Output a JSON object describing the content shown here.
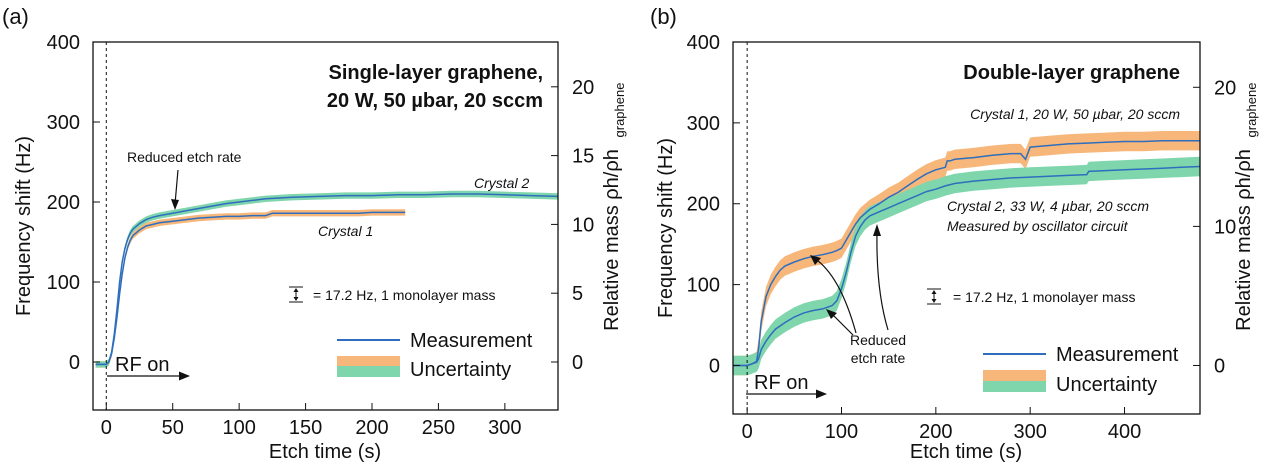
{
  "colors": {
    "measurement": "#2f6ebd",
    "uncertainty_orange": "#f7b77a",
    "uncertainty_green": "#7fd6ad",
    "axis": "#111111"
  },
  "chart_data": [
    {
      "panel_label": "(a)",
      "type": "line",
      "title": "Single-layer graphene,",
      "title_line2": "20 W, 50 µbar, 20 sccm",
      "xlabel": "Etch time (s)",
      "ylabel": "Frequency shift (Hz)",
      "ylabel_right": "Relative mass ρh/ρh",
      "ylabel_right_sub": "graphene",
      "xlim": [
        -10,
        340
      ],
      "ylim": [
        -60,
        400
      ],
      "ylim_right": [
        -3.488,
        23.256
      ],
      "xticks": [
        0,
        50,
        100,
        150,
        200,
        250,
        300
      ],
      "yticks": [
        0,
        100,
        200,
        300,
        400
      ],
      "yticks_right": [
        0,
        5,
        10,
        15,
        20
      ],
      "rf_label": "RF on",
      "scale_note": "= 17.2 Hz, 1 monolayer mass",
      "annotation": "Reduced etch rate",
      "legend": {
        "measurement": "Measurement",
        "uncertainty": "Uncertainty",
        "position": "bottom-right"
      },
      "series": [
        {
          "name": "Crystal 1",
          "band_color": "orange",
          "band_halfwidth": 4,
          "x": [
            -8,
            0,
            2,
            4,
            6,
            8,
            10,
            12,
            14,
            16,
            18,
            20,
            25,
            30,
            35,
            40,
            50,
            60,
            70,
            80,
            90,
            100,
            110,
            120,
            125,
            130,
            140,
            150,
            160,
            170,
            180,
            190,
            200,
            210,
            220,
            225
          ],
          "y": [
            -3,
            -3,
            0,
            10,
            30,
            55,
            85,
            110,
            130,
            143,
            152,
            158,
            165,
            170,
            172,
            174,
            176,
            178,
            180,
            181,
            182,
            182,
            183,
            183,
            186,
            186,
            186,
            186,
            186,
            186,
            186,
            186,
            187,
            187,
            187,
            187
          ]
        },
        {
          "name": "Crystal 2",
          "band_color": "green",
          "band_halfwidth": 4,
          "x": [
            -8,
            0,
            2,
            4,
            6,
            8,
            10,
            12,
            14,
            16,
            18,
            20,
            25,
            30,
            35,
            40,
            50,
            60,
            70,
            80,
            90,
            100,
            110,
            120,
            140,
            160,
            180,
            200,
            220,
            240,
            260,
            280,
            300,
            320,
            340
          ],
          "y": [
            -3,
            -3,
            0,
            12,
            35,
            65,
            100,
            125,
            142,
            153,
            161,
            166,
            173,
            178,
            181,
            183,
            186,
            189,
            192,
            195,
            198,
            200,
            202,
            204,
            206,
            207,
            208,
            208,
            209,
            209,
            210,
            210,
            209,
            208,
            207
          ]
        }
      ]
    },
    {
      "panel_label": "(b)",
      "type": "line",
      "title": "Double-layer graphene",
      "xlabel": "Etch time (s)",
      "ylabel": "Frequency shift (Hz)",
      "ylabel_right": "Relative mass ρh/ρh",
      "ylabel_right_sub": "graphene",
      "xlim": [
        -15,
        480
      ],
      "ylim": [
        -60,
        400
      ],
      "ylim_right": [
        -3.488,
        23.256
      ],
      "xticks": [
        0,
        100,
        200,
        300,
        400
      ],
      "yticks": [
        0,
        100,
        200,
        300,
        400
      ],
      "yticks_right": [
        0,
        10,
        20
      ],
      "rf_label": "RF on",
      "scale_note": "= 17.2 Hz, 1 monolayer mass",
      "annotation": "Reduced",
      "annotation_line2": "etch rate",
      "legend": {
        "measurement": "Measurement",
        "uncertainty": "Uncertainty",
        "position": "bottom-right"
      },
      "series": [
        {
          "name": "Crystal 1, 20 W, 50 µbar, 20 sccm",
          "band_color": "orange",
          "band_halfwidth": 12,
          "x": [
            -15,
            0,
            5,
            10,
            12,
            15,
            20,
            25,
            30,
            35,
            40,
            50,
            60,
            70,
            80,
            90,
            95,
            100,
            105,
            110,
            115,
            120,
            130,
            140,
            150,
            160,
            170,
            180,
            190,
            200,
            210,
            212,
            215,
            220,
            240,
            260,
            280,
            290,
            295,
            300,
            320,
            340,
            360,
            380,
            400,
            420,
            440,
            460,
            480
          ],
          "y": [
            0,
            0,
            2,
            5,
            20,
            55,
            85,
            100,
            110,
            118,
            123,
            128,
            132,
            135,
            137,
            140,
            142,
            145,
            155,
            165,
            175,
            183,
            193,
            200,
            208,
            214,
            222,
            230,
            237,
            242,
            245,
            253,
            253,
            255,
            257,
            260,
            262,
            262,
            255,
            270,
            272,
            274,
            275,
            276,
            277,
            277,
            278,
            278,
            278
          ]
        },
        {
          "name": "Crystal 2, 33 W, 4 µbar, 20 sccm",
          "subtitle": "Measured by oscillator circuit",
          "band_color": "green",
          "band_halfwidth": 12,
          "x": [
            -15,
            0,
            5,
            10,
            12,
            15,
            20,
            25,
            30,
            40,
            50,
            60,
            70,
            80,
            90,
            95,
            100,
            105,
            110,
            115,
            120,
            125,
            130,
            140,
            150,
            160,
            170,
            180,
            190,
            200,
            210,
            220,
            240,
            260,
            280,
            300,
            320,
            340,
            360,
            362,
            380,
            400,
            420,
            440,
            460,
            480
          ],
          "y": [
            0,
            0,
            2,
            4,
            8,
            20,
            30,
            38,
            45,
            53,
            60,
            65,
            68,
            70,
            74,
            80,
            95,
            115,
            140,
            160,
            172,
            180,
            185,
            190,
            195,
            200,
            205,
            210,
            215,
            218,
            222,
            225,
            228,
            230,
            232,
            233,
            234,
            235,
            236,
            240,
            241,
            242,
            243,
            244,
            245,
            246
          ]
        }
      ]
    }
  ]
}
